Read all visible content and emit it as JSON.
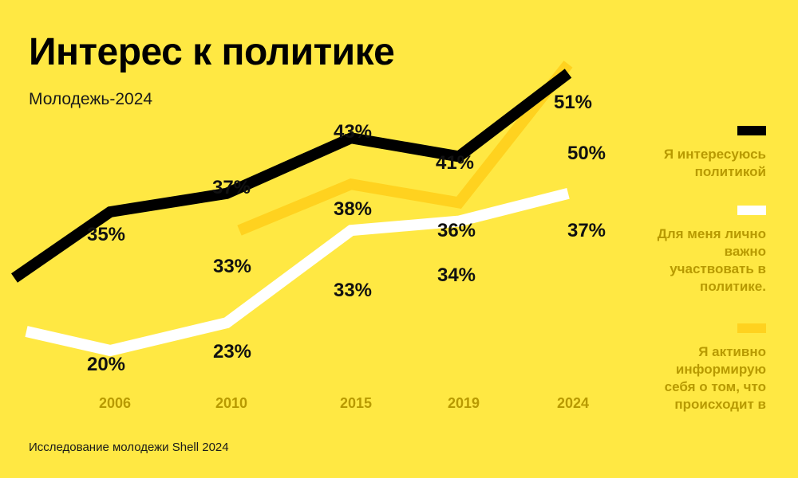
{
  "title": "Интерес к политике",
  "subtitle": "Молодежь-2024",
  "source": "Исследование молодежи Shell 2024",
  "chart_data": {
    "type": "line",
    "categories": [
      "2006",
      "2010",
      "2015",
      "2019",
      "2024"
    ],
    "series": [
      {
        "name": "Я интересуюсь политикой",
        "color": "#000000",
        "values": [
          35,
          37,
          43,
          41,
          50
        ],
        "labels": [
          "35%",
          "37%",
          "43%",
          "41%",
          "50%"
        ]
      },
      {
        "name": "Для меня лично важно участвовать в политике.",
        "color": "#FFFFFF",
        "values": [
          20,
          23,
          33,
          34,
          37
        ],
        "labels": [
          "20%",
          "23%",
          "33%",
          "34%",
          "37%"
        ]
      },
      {
        "name": "Я активно информирую себя о том, что происходит в",
        "color": "#FFD21F",
        "values": [
          null,
          33,
          38,
          36,
          51
        ],
        "labels": [
          "",
          "33%",
          "38%",
          "36%",
          "51%"
        ]
      }
    ],
    "ylim": [
      0,
      60
    ],
    "grid": false,
    "legend": "right"
  },
  "legend": [
    {
      "label": "Я интересуюсь политикой",
      "color": "#000000"
    },
    {
      "label": "Для меня лично важно участвовать в политике.",
      "color": "#FFFFFF"
    },
    {
      "label": "Я активно информирую себя о том, что происходит в",
      "color": "#FFD21F"
    }
  ]
}
